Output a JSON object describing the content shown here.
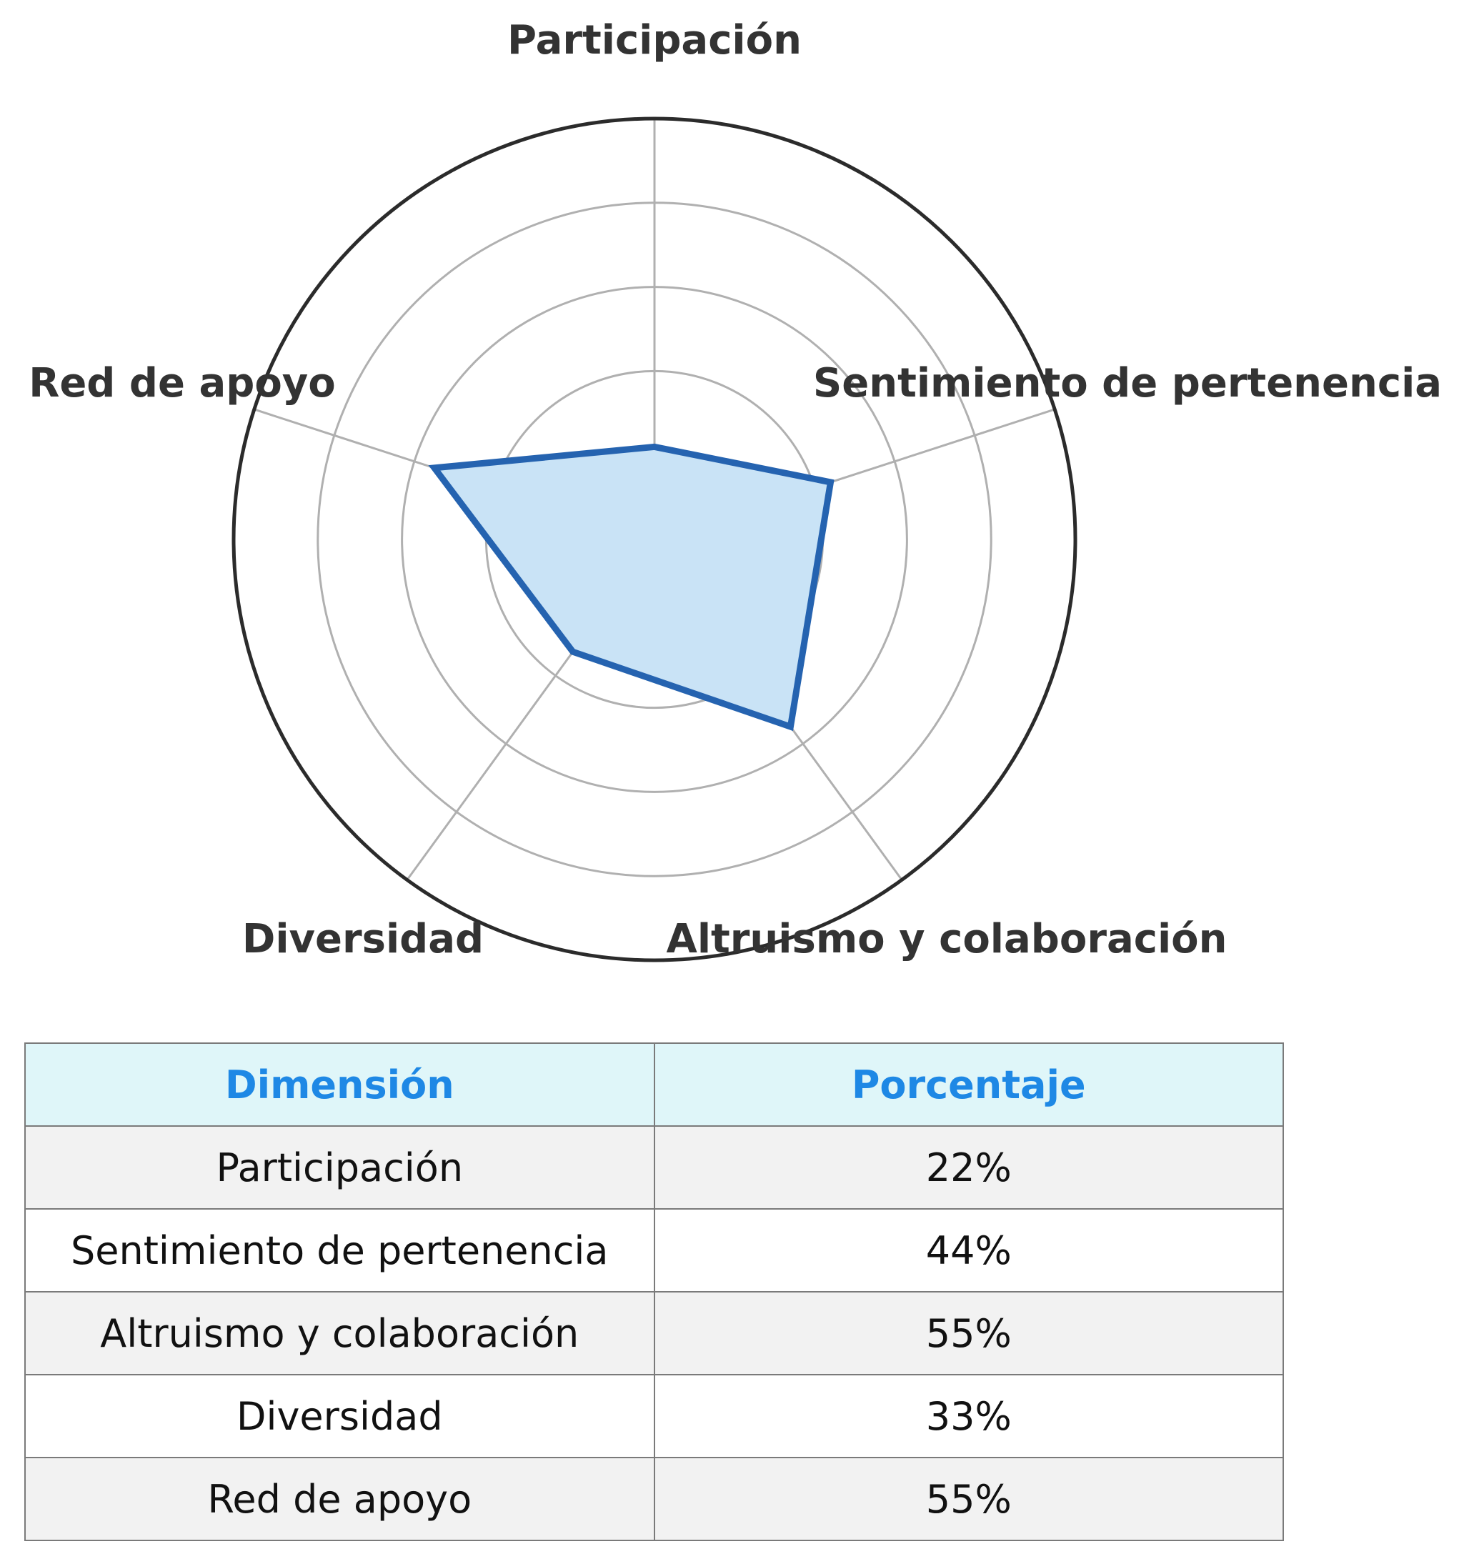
{
  "chart_data": {
    "type": "radar",
    "categories": [
      "Participación",
      "Sentimiento de pertenencia",
      "Altruismo y colaboración",
      "Diversidad",
      "Red de apoyo"
    ],
    "values": [
      22,
      44,
      55,
      33,
      55
    ],
    "rmax": 100,
    "grid": true,
    "colors": {
      "line": "#2563b0",
      "fill": "#c9e3f6",
      "grid": "#b0b0b0",
      "outer": "#2b2b2b"
    }
  },
  "table": {
    "headers": [
      "Dimensión",
      "Porcentaje"
    ],
    "rows": [
      [
        "Participación",
        "22%"
      ],
      [
        "Sentimiento de pertenencia",
        "44%"
      ],
      [
        "Altruismo y colaboración",
        "55%"
      ],
      [
        "Diversidad",
        "33%"
      ],
      [
        "Red de apoyo",
        "55%"
      ]
    ]
  }
}
